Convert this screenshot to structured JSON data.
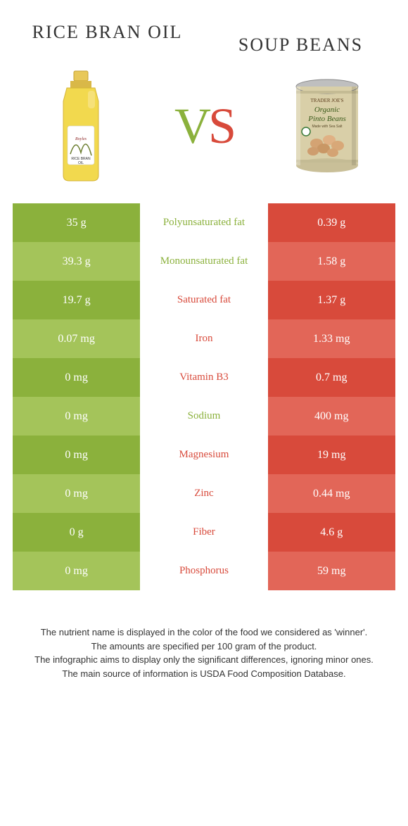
{
  "left": {
    "title": "Rice bran oil",
    "color_dark": "#8bb13c",
    "color_light": "#a4c45a"
  },
  "right": {
    "title": "Soup beans",
    "color_dark": "#d84a3b",
    "color_light": "#e26658"
  },
  "vs": {
    "v": "V",
    "s": "S"
  },
  "rows": [
    {
      "left": "35 g",
      "label": "Polyunsaturated fat",
      "right": "0.39 g",
      "winner": "left"
    },
    {
      "left": "39.3 g",
      "label": "Monounsaturated fat",
      "right": "1.58 g",
      "winner": "left"
    },
    {
      "left": "19.7 g",
      "label": "Saturated fat",
      "right": "1.37 g",
      "winner": "right"
    },
    {
      "left": "0.07 mg",
      "label": "Iron",
      "right": "1.33 mg",
      "winner": "right"
    },
    {
      "left": "0 mg",
      "label": "Vitamin B3",
      "right": "0.7 mg",
      "winner": "right"
    },
    {
      "left": "0 mg",
      "label": "Sodium",
      "right": "400 mg",
      "winner": "left"
    },
    {
      "left": "0 mg",
      "label": "Magnesium",
      "right": "19 mg",
      "winner": "right"
    },
    {
      "left": "0 mg",
      "label": "Zinc",
      "right": "0.44 mg",
      "winner": "right"
    },
    {
      "left": "0 g",
      "label": "Fiber",
      "right": "4.6 g",
      "winner": "right"
    },
    {
      "left": "0 mg",
      "label": "Phosphorus",
      "right": "59 mg",
      "winner": "right"
    }
  ],
  "footer": [
    "The nutrient name is displayed in the color of the food we considered as 'winner'.",
    "The amounts are specified per 100 gram of the product.",
    "The infographic aims to display only the significant differences, ignoring minor ones.",
    "The main source of information is USDA Food Composition Database."
  ]
}
